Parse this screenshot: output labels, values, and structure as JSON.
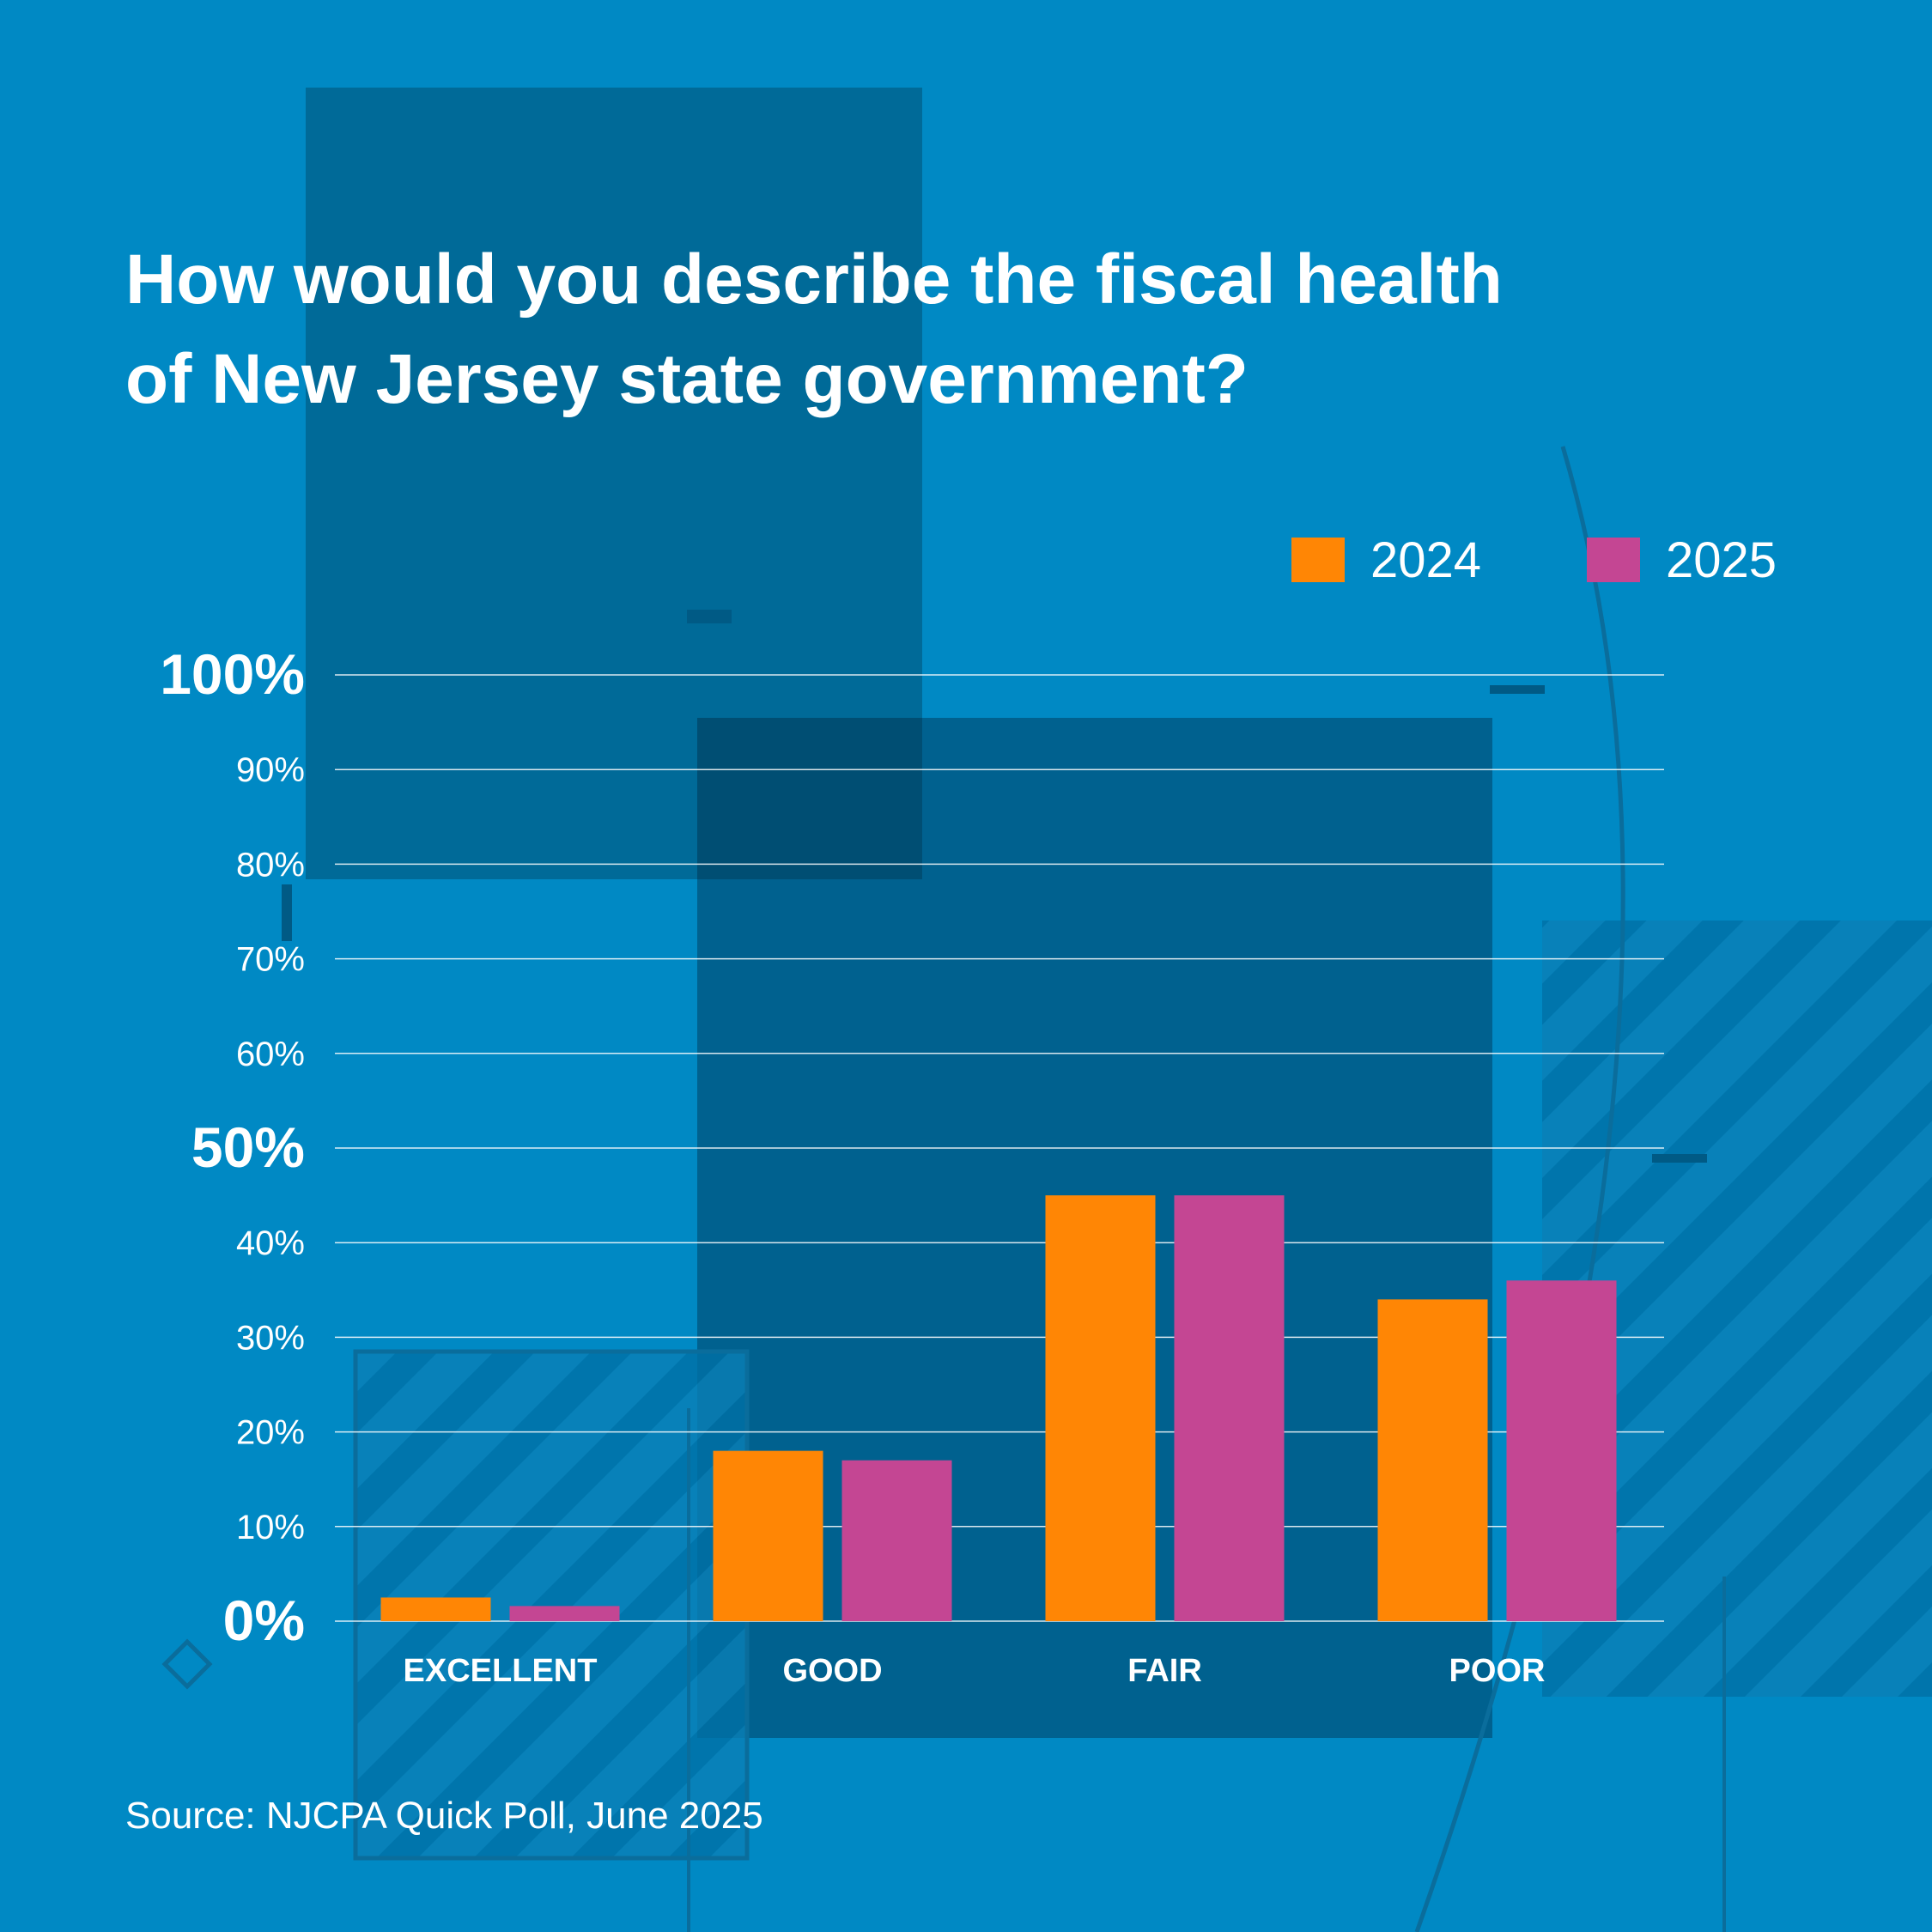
{
  "title_line1": "How would you describe the fiscal health",
  "title_line2": "of New Jersey state government?",
  "source": "Source: NJCPA Quick Poll, June 2025",
  "colors": {
    "background": "#0089c4",
    "series_2024": "#ff8605",
    "series_2025": "#c44693",
    "gridline": "#ffffff",
    "text": "#ffffff"
  },
  "legend": [
    {
      "label": "2024",
      "color": "#ff8605"
    },
    {
      "label": "2025",
      "color": "#c44693"
    }
  ],
  "chart_data": {
    "type": "bar",
    "title": "How would you describe the fiscal health of New Jersey state government?",
    "categories": [
      "EXCELLENT",
      "GOOD",
      "FAIR",
      "POOR"
    ],
    "series": [
      {
        "name": "2024",
        "values": [
          2.5,
          18,
          45,
          34
        ]
      },
      {
        "name": "2025",
        "values": [
          1.6,
          17,
          45,
          36
        ]
      }
    ],
    "ylim": [
      0,
      100
    ],
    "yticks": [
      {
        "value": 0,
        "label": "0%",
        "major": true
      },
      {
        "value": 10,
        "label": "10%",
        "major": false
      },
      {
        "value": 20,
        "label": "20%",
        "major": false
      },
      {
        "value": 30,
        "label": "30%",
        "major": false
      },
      {
        "value": 40,
        "label": "40%",
        "major": false
      },
      {
        "value": 50,
        "label": "50%",
        "major": true
      },
      {
        "value": 60,
        "label": "60%",
        "major": false
      },
      {
        "value": 70,
        "label": "70%",
        "major": false
      },
      {
        "value": 80,
        "label": "80%",
        "major": false
      },
      {
        "value": 90,
        "label": "90%",
        "major": false
      },
      {
        "value": 100,
        "label": "100%",
        "major": true
      }
    ],
    "xlabel": "",
    "ylabel": "",
    "grid": true,
    "legend_position": "top-right"
  }
}
